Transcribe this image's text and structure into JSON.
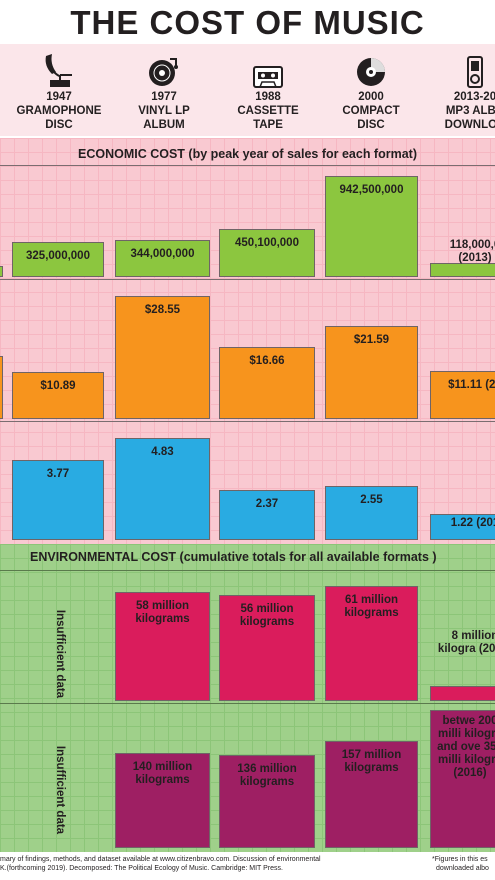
{
  "title": "THE COST OF MUSIC",
  "formats": [
    {
      "year": "1947",
      "name_line1": "GRAMOPHONE",
      "name_line2": "DISC",
      "icon": "gramophone-icon"
    },
    {
      "year": "1977",
      "name_line1": "VINYL LP",
      "name_line2": "ALBUM",
      "icon": "vinyl-record-icon"
    },
    {
      "year": "1988",
      "name_line1": "CASSETTE",
      "name_line2": "TAPE",
      "icon": "cassette-tape-icon"
    },
    {
      "year": "2000",
      "name_line1": "COMPACT",
      "name_line2": "DISC",
      "icon": "compact-disc-icon"
    },
    {
      "year": "2013-20",
      "name_line1": "MP3 ALBU",
      "name_line2": "DOWNLOA",
      "icon": "mp3-player-icon"
    }
  ],
  "colors": {
    "green": "#8cc63f",
    "orange": "#f7941d",
    "blue": "#29abe2",
    "red": "#da1c5c",
    "purple": "#9e1f63",
    "eco_bg": "#f9c9d1",
    "env_bg": "#9fd08a",
    "header_bg": "#fbe6ea"
  },
  "economic_heading": "ECONOMIC COST (by peak year of sales for each format)",
  "environmental_heading": "ENVIRONMENTAL COST (cumulative totals for all available formats )",
  "insufficient_label": "Insufficient data",
  "chart_data": [
    {
      "type": "bar",
      "categories": [
        "1947 Gramophone Disc",
        "1977 Vinyl LP Album",
        "1988 Cassette Tape",
        "2000 Compact Disc",
        "2013-20 MP3 Album Download"
      ],
      "values": [
        325000000,
        344000000,
        450100000,
        942500000,
        118000000
      ],
      "labels": [
        "325,000,000",
        "344,000,000",
        "450,100,000",
        "942,500,000",
        "118,000,0 (2013)"
      ]
    },
    {
      "type": "bar",
      "categories": [
        "1947 Gramophone Disc",
        "1977 Vinyl LP Album",
        "1988 Cassette Tape",
        "2000 Compact Disc",
        "2013-20 MP3 Album Download"
      ],
      "values": [
        10.89,
        28.55,
        16.66,
        21.59,
        11.11
      ],
      "labels": [
        "$10.89",
        "$28.55",
        "$16.66",
        "$21.59",
        "$11.11 (20"
      ]
    },
    {
      "type": "bar",
      "categories": [
        "1947 Gramophone Disc",
        "1977 Vinyl LP Album",
        "1988 Cassette Tape",
        "2000 Compact Disc",
        "2013-20 MP3 Album Download"
      ],
      "values": [
        3.77,
        4.83,
        2.37,
        2.55,
        1.22
      ],
      "labels": [
        "3.77",
        "4.83",
        "2.37",
        "2.55",
        "1.22 (201"
      ]
    },
    {
      "type": "bar",
      "categories": [
        "1977 Vinyl LP Album",
        "1988 Cassette Tape",
        "2000 Compact Disc",
        "2013-20 MP3 Album Download"
      ],
      "values": [
        58,
        56,
        61,
        8
      ],
      "labels": [
        "58 million kilograms",
        "56 million kilograms",
        "61 million kilograms",
        "8 million kilogra (2016)"
      ]
    },
    {
      "type": "bar",
      "categories": [
        "1977 Vinyl LP Album",
        "1988 Cassette Tape",
        "2000 Compact Disc",
        "2013-20 MP3 Album Download"
      ],
      "values": [
        140,
        136,
        157,
        275
      ],
      "labels": [
        "140 million kilograms",
        "136 million kilograms",
        "157 million kilograms",
        "betwe 200 milli kilogra and ove 350 milli kilogra (2016)"
      ]
    }
  ],
  "footer_left_1": "mary of findings, methods, and dataset available at www.citizenbravo.com. Discussion of environmental",
  "footer_left_2": "K.(forthcoming 2019). Decomposed: The Political Ecology of Music. Cambridge: MIT Press.",
  "footer_right_1": "*Figures in this es",
  "footer_right_2": "downloaded albo"
}
